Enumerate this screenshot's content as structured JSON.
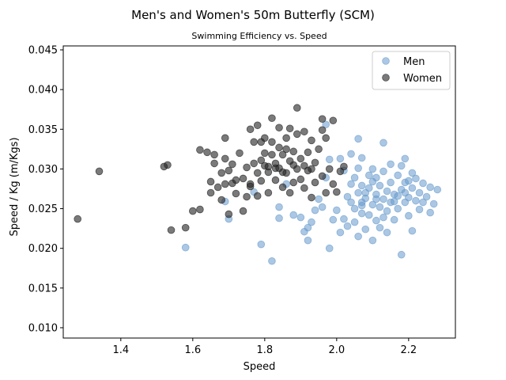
{
  "chart_data": {
    "type": "scatter",
    "title": "Men's and Women's 50m Butterfly (SCM)",
    "subtitle": "Swimming Efficiency vs. Speed",
    "xlabel": "Speed",
    "ylabel": "Speed / Kg (m/Kgs)",
    "xlim": [
      1.24,
      2.33
    ],
    "ylim": [
      0.0087,
      0.0455
    ],
    "xticks": [
      1.4,
      1.6,
      1.8,
      2.0,
      2.2
    ],
    "xtick_labels": [
      "1.4",
      "1.6",
      "1.8",
      "2.0",
      "2.2"
    ],
    "yticks": [
      0.01,
      0.015,
      0.02,
      0.025,
      0.03,
      0.035,
      0.04,
      0.045
    ],
    "ytick_labels": [
      "0.010",
      "0.015",
      "0.020",
      "0.025",
      "0.030",
      "0.035",
      "0.040",
      "0.045"
    ],
    "grid": false,
    "legend_position": "top-right",
    "series": [
      {
        "name": "Men",
        "color": "#6699cc",
        "alpha": 0.55,
        "points": [
          [
            1.58,
            0.0201
          ],
          [
            1.69,
            0.0259
          ],
          [
            1.7,
            0.0237
          ],
          [
            1.77,
            0.0271
          ],
          [
            1.79,
            0.0205
          ],
          [
            1.82,
            0.0184
          ],
          [
            1.84,
            0.0252
          ],
          [
            1.84,
            0.0238
          ],
          [
            1.86,
            0.0281
          ],
          [
            1.88,
            0.0242
          ],
          [
            1.9,
            0.0239
          ],
          [
            1.91,
            0.0221
          ],
          [
            1.92,
            0.0226
          ],
          [
            1.92,
            0.021
          ],
          [
            1.93,
            0.0233
          ],
          [
            1.94,
            0.0248
          ],
          [
            1.95,
            0.0262
          ],
          [
            1.96,
            0.0252
          ],
          [
            1.97,
            0.0289
          ],
          [
            1.97,
            0.0356
          ],
          [
            1.98,
            0.02
          ],
          [
            1.98,
            0.0312
          ],
          [
            1.99,
            0.0236
          ],
          [
            2.0,
            0.0248
          ],
          [
            2.01,
            0.0313
          ],
          [
            2.01,
            0.022
          ],
          [
            2.02,
            0.0237
          ],
          [
            2.03,
            0.0228
          ],
          [
            2.03,
            0.0265
          ],
          [
            2.04,
            0.0319
          ],
          [
            2.04,
            0.0281
          ],
          [
            2.05,
            0.0233
          ],
          [
            2.05,
            0.025
          ],
          [
            2.06,
            0.027
          ],
          [
            2.06,
            0.0215
          ],
          [
            2.06,
            0.0301
          ],
          [
            2.06,
            0.0338
          ],
          [
            2.07,
            0.0258
          ],
          [
            2.07,
            0.0279
          ],
          [
            2.07,
            0.0244
          ],
          [
            2.07,
            0.0314
          ],
          [
            2.08,
            0.0224
          ],
          [
            2.08,
            0.0263
          ],
          [
            2.09,
            0.0242
          ],
          [
            2.09,
            0.0292
          ],
          [
            2.09,
            0.0276
          ],
          [
            2.1,
            0.0255
          ],
          [
            2.1,
            0.021
          ],
          [
            2.1,
            0.03
          ],
          [
            2.11,
            0.0268
          ],
          [
            2.11,
            0.0235
          ],
          [
            2.11,
            0.0289
          ],
          [
            2.12,
            0.0252
          ],
          [
            2.12,
            0.0279
          ],
          [
            2.12,
            0.0226
          ],
          [
            2.13,
            0.0333
          ],
          [
            2.13,
            0.0262
          ],
          [
            2.13,
            0.0297
          ],
          [
            2.14,
            0.0247
          ],
          [
            2.14,
            0.0272
          ],
          [
            2.14,
            0.022
          ],
          [
            2.15,
            0.0306
          ],
          [
            2.15,
            0.0283
          ],
          [
            2.15,
            0.0258
          ],
          [
            2.16,
            0.0236
          ],
          [
            2.16,
            0.0268
          ],
          [
            2.17,
            0.0292
          ],
          [
            2.17,
            0.025
          ],
          [
            2.18,
            0.0304
          ],
          [
            2.18,
            0.0274
          ],
          [
            2.18,
            0.0192
          ],
          [
            2.19,
            0.0258
          ],
          [
            2.19,
            0.0313
          ],
          [
            2.19,
            0.0283
          ],
          [
            2.2,
            0.0264
          ],
          [
            2.2,
            0.0241
          ],
          [
            2.21,
            0.0295
          ],
          [
            2.21,
            0.0276
          ],
          [
            2.21,
            0.0222
          ],
          [
            2.22,
            0.0288
          ],
          [
            2.22,
            0.026
          ],
          [
            2.23,
            0.027
          ],
          [
            2.23,
            0.0249
          ],
          [
            2.24,
            0.0282
          ],
          [
            2.24,
            0.0258
          ],
          [
            2.25,
            0.0265
          ],
          [
            2.26,
            0.0245
          ],
          [
            2.26,
            0.0277
          ],
          [
            2.27,
            0.0256
          ],
          [
            2.28,
            0.0274
          ],
          [
            2.05,
            0.0289
          ],
          [
            2.02,
            0.0298
          ],
          [
            2.08,
            0.027
          ],
          [
            2.16,
            0.0259
          ],
          [
            2.11,
            0.0262
          ],
          [
            2.13,
            0.0239
          ],
          [
            2.17,
            0.0266
          ],
          [
            2.2,
            0.0285
          ],
          [
            2.04,
            0.0258
          ],
          [
            2.1,
            0.0284
          ],
          [
            2.19,
            0.027
          ],
          [
            2.07,
            0.0254
          ]
        ]
      },
      {
        "name": "Women",
        "color": "#222222",
        "alpha": 0.6,
        "points": [
          [
            1.28,
            0.0237
          ],
          [
            1.34,
            0.0297
          ],
          [
            1.52,
            0.0303
          ],
          [
            1.53,
            0.0305
          ],
          [
            1.54,
            0.0223
          ],
          [
            1.58,
            0.0226
          ],
          [
            1.6,
            0.0247
          ],
          [
            1.62,
            0.0249
          ],
          [
            1.62,
            0.0324
          ],
          [
            1.64,
            0.0321
          ],
          [
            1.65,
            0.027
          ],
          [
            1.65,
            0.0284
          ],
          [
            1.66,
            0.0307
          ],
          [
            1.66,
            0.0318
          ],
          [
            1.67,
            0.0277
          ],
          [
            1.68,
            0.0295
          ],
          [
            1.68,
            0.0261
          ],
          [
            1.69,
            0.0281
          ],
          [
            1.69,
            0.0313
          ],
          [
            1.69,
            0.0339
          ],
          [
            1.7,
            0.0298
          ],
          [
            1.7,
            0.0243
          ],
          [
            1.71,
            0.0282
          ],
          [
            1.71,
            0.0306
          ],
          [
            1.72,
            0.0286
          ],
          [
            1.72,
            0.0269
          ],
          [
            1.73,
            0.032
          ],
          [
            1.74,
            0.0247
          ],
          [
            1.75,
            0.0265
          ],
          [
            1.75,
            0.0302
          ],
          [
            1.76,
            0.035
          ],
          [
            1.76,
            0.0281
          ],
          [
            1.77,
            0.0307
          ],
          [
            1.77,
            0.0334
          ],
          [
            1.78,
            0.0295
          ],
          [
            1.78,
            0.0355
          ],
          [
            1.78,
            0.0266
          ],
          [
            1.79,
            0.0285
          ],
          [
            1.79,
            0.0311
          ],
          [
            1.8,
            0.032
          ],
          [
            1.8,
            0.0339
          ],
          [
            1.81,
            0.0296
          ],
          [
            1.81,
            0.027
          ],
          [
            1.81,
            0.0303
          ],
          [
            1.82,
            0.0364
          ],
          [
            1.82,
            0.0334
          ],
          [
            1.83,
            0.0307
          ],
          [
            1.83,
            0.0286
          ],
          [
            1.84,
            0.0327
          ],
          [
            1.84,
            0.0352
          ],
          [
            1.84,
            0.0301
          ],
          [
            1.85,
            0.0277
          ],
          [
            1.85,
            0.0318
          ],
          [
            1.86,
            0.0295
          ],
          [
            1.86,
            0.0339
          ],
          [
            1.87,
            0.031
          ],
          [
            1.87,
            0.0351
          ],
          [
            1.87,
            0.027
          ],
          [
            1.88,
            0.0283
          ],
          [
            1.88,
            0.0322
          ],
          [
            1.89,
            0.0377
          ],
          [
            1.89,
            0.03
          ],
          [
            1.89,
            0.0344
          ],
          [
            1.9,
            0.0287
          ],
          [
            1.9,
            0.0313
          ],
          [
            1.91,
            0.0347
          ],
          [
            1.91,
            0.0276
          ],
          [
            1.92,
            0.0298
          ],
          [
            1.92,
            0.0321
          ],
          [
            1.93,
            0.0336
          ],
          [
            1.93,
            0.0264
          ],
          [
            1.94,
            0.0308
          ],
          [
            1.94,
            0.0283
          ],
          [
            1.95,
            0.0325
          ],
          [
            1.96,
            0.0349
          ],
          [
            1.96,
            0.0363
          ],
          [
            1.96,
            0.0291
          ],
          [
            1.97,
            0.027
          ],
          [
            1.97,
            0.0339
          ],
          [
            1.98,
            0.03
          ],
          [
            1.99,
            0.0361
          ],
          [
            1.99,
            0.0281
          ],
          [
            2.0,
            0.0271
          ],
          [
            2.01,
            0.0297
          ],
          [
            2.02,
            0.0303
          ],
          [
            1.74,
            0.0288
          ],
          [
            1.8,
            0.0304
          ],
          [
            1.85,
            0.0296
          ],
          [
            1.91,
            0.0304
          ],
          [
            1.86,
            0.0325
          ],
          [
            1.83,
            0.0301
          ],
          [
            1.88,
            0.0305
          ],
          [
            1.93,
            0.03
          ],
          [
            1.79,
            0.0334
          ],
          [
            1.76,
            0.0278
          ],
          [
            1.82,
            0.0318
          ]
        ]
      }
    ]
  }
}
